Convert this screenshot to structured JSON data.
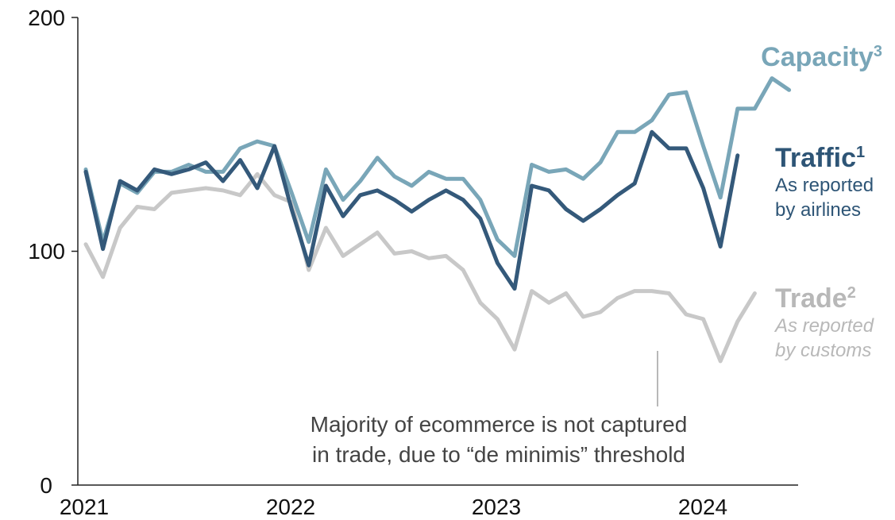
{
  "chart_data": {
    "type": "line",
    "title": "",
    "xlabel": "",
    "ylabel": "",
    "ylim": [
      0,
      200
    ],
    "y_ticks": [
      "0",
      "100",
      "200"
    ],
    "x_ticks": [
      "2021",
      "2022",
      "2023",
      "2024"
    ],
    "x_start_year": 2021,
    "grid": false,
    "colors": {
      "capacity": "#79a6b8",
      "traffic": "#34597a",
      "trade": "#c8c8c8"
    },
    "series": [
      {
        "key": "capacity",
        "name": "Capacity",
        "footnote": "3",
        "values": [
          135,
          104,
          129,
          125,
          134,
          134,
          137,
          134,
          134,
          144,
          147,
          145,
          125,
          104,
          135,
          122,
          130,
          140,
          132,
          128,
          134,
          131,
          131,
          122,
          105,
          98,
          137,
          134,
          135,
          131,
          138,
          151,
          151,
          156,
          167,
          168,
          145,
          123,
          161,
          161,
          174,
          169
        ]
      },
      {
        "key": "traffic",
        "name": "Traffic",
        "footnote": "1",
        "note_lines": [
          "As reported",
          "by airlines"
        ],
        "values": [
          134,
          101,
          130,
          126,
          135,
          133,
          135,
          138,
          130,
          139,
          127,
          145,
          118,
          94,
          128,
          115,
          124,
          126,
          122,
          117,
          122,
          126,
          122,
          114,
          95,
          84,
          128,
          126,
          118,
          113,
          118,
          124,
          129,
          151,
          144,
          144,
          127,
          102,
          141
        ]
      },
      {
        "key": "trade",
        "name": "Trade",
        "footnote": "2",
        "note_lines": [
          "As reported",
          "by customs"
        ],
        "values": [
          103,
          89,
          110,
          119,
          118,
          125,
          126,
          127,
          126,
          124,
          133,
          124,
          121,
          92,
          110,
          98,
          103,
          108,
          99,
          100,
          97,
          98,
          92,
          78,
          71,
          58,
          83,
          78,
          82,
          72,
          74,
          80,
          83,
          83,
          82,
          73,
          71,
          53,
          70,
          82
        ]
      }
    ],
    "annotation": [
      "Majority of ecommerce is not captured",
      "in trade, due to “de minimis” threshold"
    ]
  }
}
